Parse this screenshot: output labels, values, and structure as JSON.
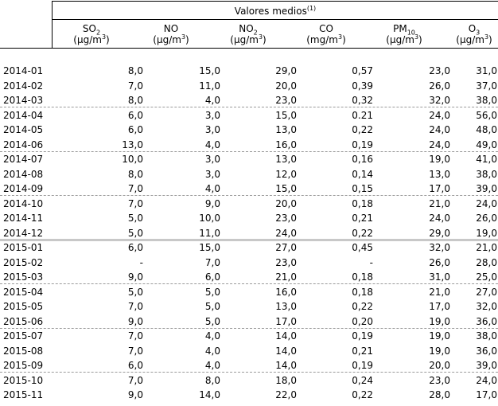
{
  "header": {
    "group_title": "Valores medios",
    "group_note": "(1)",
    "columns": [
      {
        "label_main": "SO",
        "label_sub": "2",
        "label_rest": "",
        "unit_pre": "(μg/m",
        "unit_sup": "3",
        "unit_post": ")"
      },
      {
        "label_main": "NO",
        "label_sub": "",
        "label_rest": "",
        "unit_pre": "(μg/m",
        "unit_sup": "3",
        "unit_post": ")"
      },
      {
        "label_main": "NO",
        "label_sub": "2",
        "label_rest": "",
        "unit_pre": "(μg/m",
        "unit_sup": "3",
        "unit_post": ")"
      },
      {
        "label_main": "CO",
        "label_sub": "",
        "label_rest": "",
        "unit_pre": "(mg/m",
        "unit_sup": "3",
        "unit_post": ")"
      },
      {
        "label_main": "PM",
        "label_sub": "10",
        "label_rest": "",
        "unit_pre": "(μg/m",
        "unit_sup": "3",
        "unit_post": ")"
      },
      {
        "label_main": "O",
        "label_sub": "3",
        "label_rest": "",
        "unit_pre": "(μg/m",
        "unit_sup": "3",
        "unit_post": ")"
      }
    ]
  },
  "rows": [
    {
      "period": "2014-01",
      "values": [
        "8,0",
        "15,0",
        "29,0",
        "0,57",
        "23,0",
        "31,0"
      ]
    },
    {
      "period": "2014-02",
      "values": [
        "7,0",
        "11,0",
        "20,0",
        "0,39",
        "26,0",
        "37,0"
      ]
    },
    {
      "period": "2014-03",
      "values": [
        "8,0",
        "4,0",
        "23,0",
        "0,32",
        "32,0",
        "38,0"
      ]
    },
    {
      "period": "2014-04",
      "values": [
        "6,0",
        "3,0",
        "15,0",
        "0.21",
        "24,0",
        "56,0"
      ]
    },
    {
      "period": "2014-05",
      "values": [
        "6,0",
        "3,0",
        "13,0",
        "0,22",
        "24,0",
        "48,0"
      ]
    },
    {
      "period": "2014-06",
      "values": [
        "13,0",
        "4,0",
        "16,0",
        "0,19",
        "24,0",
        "49,0"
      ]
    },
    {
      "period": "2014-07",
      "values": [
        "10,0",
        "3,0",
        "13,0",
        "0,16",
        "19,0",
        "41,0"
      ]
    },
    {
      "period": "2014-08",
      "values": [
        "8,0",
        "3,0",
        "12,0",
        "0,14",
        "13,0",
        "38,0"
      ]
    },
    {
      "period": "2014-09",
      "values": [
        "7,0",
        "4,0",
        "15,0",
        "0,15",
        "17,0",
        "39,0"
      ]
    },
    {
      "period": "2014-10",
      "values": [
        "7,0",
        "9,0",
        "20,0",
        "0,18",
        "21,0",
        "24,0"
      ]
    },
    {
      "period": "2014-11",
      "values": [
        "5,0",
        "10,0",
        "23,0",
        "0,21",
        "24,0",
        "26,0"
      ]
    },
    {
      "period": "2014-12",
      "values": [
        "5,0",
        "11,0",
        "24,0",
        "0,22",
        "29,0",
        "19,0"
      ]
    },
    {
      "period": "2015-01",
      "values": [
        "6,0",
        "15,0",
        "27,0",
        "0,45",
        "32,0",
        "21,0"
      ]
    },
    {
      "period": "2015-02",
      "values": [
        "-",
        "7,0",
        "23,0",
        "-",
        "26,0",
        "28,0"
      ]
    },
    {
      "period": "2015-03",
      "values": [
        "9,0",
        "6,0",
        "21,0",
        "0,18",
        "31,0",
        "25,0"
      ]
    },
    {
      "period": "2015-04",
      "values": [
        "5,0",
        "5,0",
        "16,0",
        "0,18",
        "21,0",
        "27,0"
      ]
    },
    {
      "period": "2015-05",
      "values": [
        "7,0",
        "5,0",
        "13,0",
        "0,22",
        "17,0",
        "32,0"
      ]
    },
    {
      "period": "2015-06",
      "values": [
        "9,0",
        "5,0",
        "17,0",
        "0,20",
        "19,0",
        "36,0"
      ]
    },
    {
      "period": "2015-07",
      "values": [
        "7,0",
        "4,0",
        "14,0",
        "0,19",
        "19,0",
        "38,0"
      ]
    },
    {
      "period": "2015-08",
      "values": [
        "7,0",
        "4,0",
        "14,0",
        "0,21",
        "19,0",
        "36,0"
      ]
    },
    {
      "period": "2015-09",
      "values": [
        "6,0",
        "4,0",
        "14,0",
        "0,19",
        "20,0",
        "39,0"
      ]
    },
    {
      "period": "2015-10",
      "values": [
        "7,0",
        "8,0",
        "18,0",
        "0,24",
        "23,0",
        "24,0"
      ]
    },
    {
      "period": "2015-11",
      "values": [
        "9,0",
        "14,0",
        "22,0",
        "0,22",
        "28,0",
        "17,0"
      ]
    }
  ]
}
